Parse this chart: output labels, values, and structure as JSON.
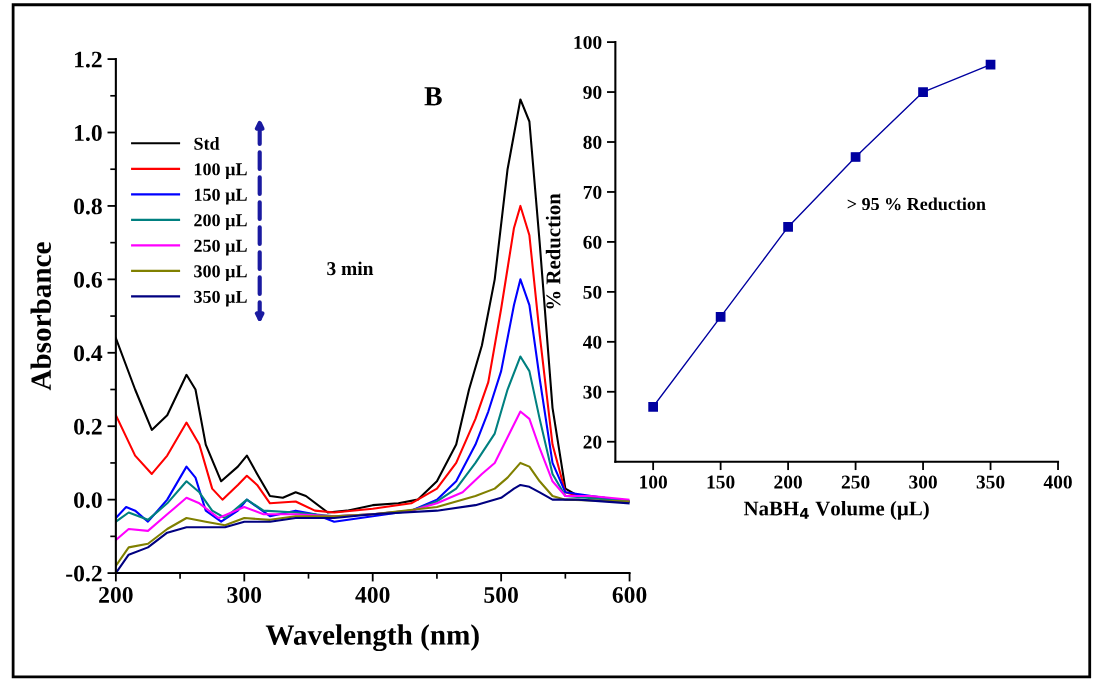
{
  "chart_data": [
    {
      "type": "line",
      "xlabel": "Wavelength (nm)",
      "ylabel": "Absorbance",
      "xlim": [
        200,
        600
      ],
      "ylim": [
        -0.2,
        1.2
      ],
      "xticks": [
        200,
        300,
        400,
        500,
        600
      ],
      "yticks": [
        {
          "value": -0.2,
          "label": "-0.2"
        },
        {
          "value": 0,
          "label": "0.0"
        },
        {
          "value": 0.2,
          "label": "0.2"
        },
        {
          "value": 0.4,
          "label": "0.4"
        },
        {
          "value": 0.6,
          "label": "0.6"
        },
        {
          "value": 0.8,
          "label": "0.8"
        },
        {
          "value": 1.0,
          "label": "1.0"
        },
        {
          "value": 1.2,
          "label": "1.2"
        }
      ],
      "legend": "top left",
      "grid": false,
      "marker": "none",
      "line_style": "solid",
      "annotations": [
        "B",
        "3 min"
      ],
      "series": [
        {
          "name": "Std",
          "color": "#000000",
          "x": [
            200,
            215,
            228,
            240,
            255,
            262,
            270,
            282,
            295,
            302,
            310,
            320,
            330,
            340,
            348,
            365,
            380,
            400,
            420,
            435,
            450,
            465,
            475,
            485,
            495,
            505,
            515,
            522,
            530,
            540,
            550,
            560,
            580,
            600
          ],
          "values": [
            0.44,
            0.3,
            0.19,
            0.23,
            0.34,
            0.3,
            0.15,
            0.05,
            0.09,
            0.12,
            0.07,
            0.01,
            0.005,
            0.02,
            0.01,
            -0.035,
            -0.03,
            -0.015,
            -0.01,
            0.0,
            0.05,
            0.15,
            0.3,
            0.42,
            0.6,
            0.9,
            1.09,
            1.03,
            0.7,
            0.25,
            0.03,
            0.01,
            0.005,
            -0.005
          ]
        },
        {
          "name": "100 µL",
          "color": "#ff0000",
          "x": [
            200,
            215,
            228,
            240,
            255,
            265,
            275,
            283,
            295,
            302,
            310,
            320,
            340,
            355,
            370,
            400,
            430,
            450,
            465,
            480,
            490,
            500,
            510,
            515,
            522,
            530,
            540,
            550,
            560,
            600
          ],
          "values": [
            0.23,
            0.12,
            0.07,
            0.12,
            0.21,
            0.15,
            0.03,
            0.0,
            0.04,
            0.065,
            0.04,
            -0.01,
            -0.005,
            -0.03,
            -0.035,
            -0.025,
            -0.01,
            0.03,
            0.1,
            0.22,
            0.32,
            0.52,
            0.74,
            0.8,
            0.72,
            0.45,
            0.15,
            0.02,
            0.01,
            -0.005
          ]
        },
        {
          "name": "150 µL",
          "color": "#0000ff",
          "x": [
            200,
            208,
            215,
            225,
            240,
            255,
            262,
            270,
            282,
            295,
            302,
            310,
            320,
            340,
            355,
            370,
            400,
            430,
            450,
            465,
            480,
            490,
            500,
            510,
            515,
            522,
            530,
            540,
            550,
            600
          ],
          "values": [
            -0.05,
            -0.02,
            -0.03,
            -0.06,
            0.0,
            0.09,
            0.06,
            -0.03,
            -0.06,
            -0.03,
            0.0,
            -0.02,
            -0.045,
            -0.03,
            -0.04,
            -0.06,
            -0.045,
            -0.03,
            0.0,
            0.05,
            0.15,
            0.24,
            0.35,
            0.53,
            0.6,
            0.53,
            0.33,
            0.1,
            0.02,
            -0.005
          ]
        },
        {
          "name": "200 µL",
          "color": "#008080",
          "x": [
            200,
            210,
            225,
            240,
            255,
            265,
            275,
            285,
            302,
            315,
            340,
            370,
            400,
            430,
            450,
            465,
            480,
            495,
            505,
            515,
            522,
            530,
            540,
            550,
            600
          ],
          "values": [
            -0.06,
            -0.035,
            -0.055,
            -0.01,
            0.05,
            0.02,
            -0.03,
            -0.05,
            0.0,
            -0.03,
            -0.035,
            -0.045,
            -0.04,
            -0.03,
            -0.005,
            0.03,
            0.1,
            0.18,
            0.3,
            0.39,
            0.35,
            0.22,
            0.07,
            0.01,
            -0.005
          ]
        },
        {
          "name": "250 µL",
          "color": "#ff00ff",
          "x": [
            200,
            210,
            225,
            240,
            255,
            265,
            280,
            300,
            315,
            340,
            370,
            400,
            430,
            450,
            470,
            485,
            495,
            505,
            515,
            522,
            530,
            540,
            550,
            570,
            600
          ],
          "values": [
            -0.11,
            -0.08,
            -0.085,
            -0.04,
            0.005,
            -0.01,
            -0.05,
            -0.02,
            -0.04,
            -0.04,
            -0.045,
            -0.04,
            -0.03,
            -0.01,
            0.02,
            0.07,
            0.1,
            0.17,
            0.24,
            0.22,
            0.14,
            0.05,
            0.01,
            0.01,
            0.0
          ]
        },
        {
          "name": "300 µL",
          "color": "#808000",
          "x": [
            200,
            210,
            225,
            240,
            255,
            270,
            285,
            300,
            320,
            340,
            370,
            400,
            450,
            480,
            495,
            505,
            515,
            522,
            530,
            540,
            550,
            600
          ],
          "values": [
            -0.18,
            -0.13,
            -0.12,
            -0.08,
            -0.05,
            -0.06,
            -0.07,
            -0.05,
            -0.055,
            -0.045,
            -0.045,
            -0.04,
            -0.02,
            0.01,
            0.03,
            0.06,
            0.1,
            0.09,
            0.05,
            0.01,
            0.0,
            -0.005
          ]
        },
        {
          "name": "350 µL",
          "color": "#000080",
          "x": [
            200,
            210,
            225,
            240,
            255,
            270,
            285,
            300,
            320,
            340,
            370,
            400,
            450,
            480,
            500,
            510,
            515,
            522,
            530,
            540,
            560,
            600
          ],
          "values": [
            -0.2,
            -0.15,
            -0.13,
            -0.09,
            -0.075,
            -0.075,
            -0.075,
            -0.06,
            -0.06,
            -0.05,
            -0.05,
            -0.04,
            -0.03,
            -0.015,
            0.005,
            0.03,
            0.04,
            0.035,
            0.02,
            0.0,
            0.0,
            -0.01
          ]
        }
      ]
    },
    {
      "type": "line",
      "xlabel": "NaBH$_{4}$ Volume (µL)",
      "ylabel": "% Reduction",
      "xlim": [
        72,
        400
      ],
      "ylim": [
        16,
        100
      ],
      "xticks": [
        100,
        150,
        200,
        250,
        300,
        350,
        400
      ],
      "yticks": [
        20,
        30,
        40,
        50,
        60,
        70,
        80,
        90,
        100
      ],
      "grid": false,
      "marker": "square",
      "line_style": "solid",
      "annotations": [
        "> 95 % Reduction"
      ],
      "series": [
        {
          "color": "#0000a0",
          "x": [
            100,
            150,
            200,
            250,
            300,
            350
          ],
          "values": [
            27,
            45,
            63,
            77,
            90,
            95.5
          ]
        }
      ]
    }
  ]
}
